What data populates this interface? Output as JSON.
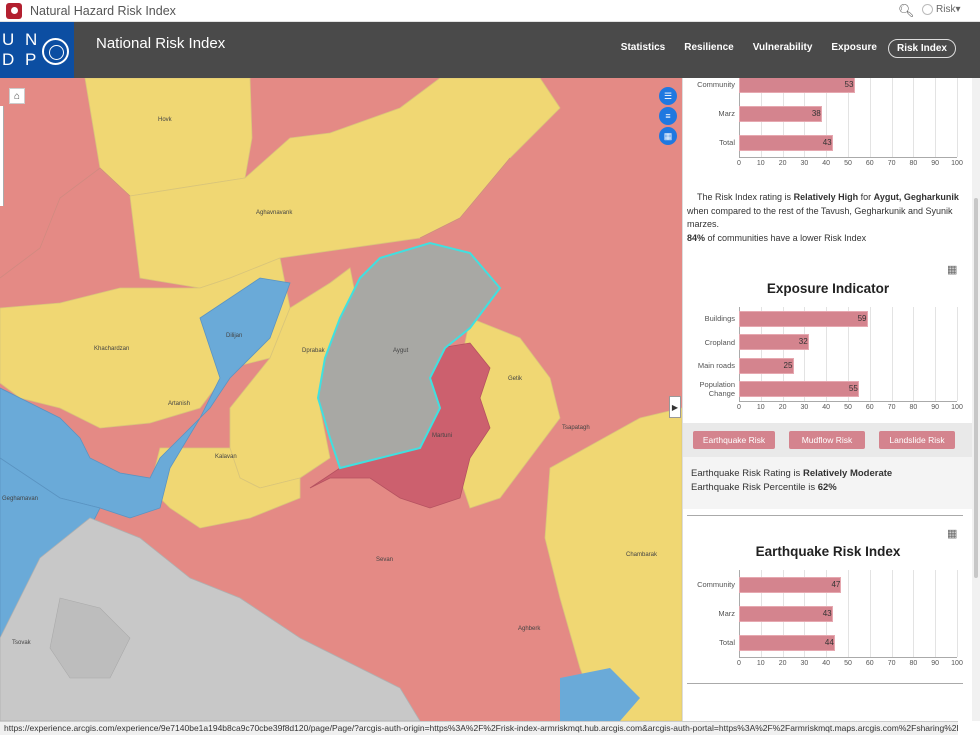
{
  "browser": {
    "tab_title": "Natural Hazard Risk Index",
    "user_label": "Risk",
    "status_url": "https://experience.arcgis.com/experience/9e7140be1a194b8ca9c70cbe39f8d120/page/Page/?arcgis-auth-origin=https%3A%2F%2Frisk-index-armriskmqt.hub.arcgis.com&arcgis-auth-portal=https%3A%2F%2Farmriskmqt.maps.arcgis.com%2Fsharing%2Fre..."
  },
  "header": {
    "logo_letters": [
      "U N",
      "D P"
    ],
    "title": "National Risk Index",
    "nav": [
      "Statistics",
      "Resilience",
      "Vulnerability",
      "Exposure",
      "Risk Index"
    ],
    "active_nav": "Risk Index"
  },
  "map": {
    "labels": [
      "Hovk",
      "Aghavnavank",
      "Khachardzan",
      "Dilijan",
      "Dprabak",
      "Aygut",
      "Getik",
      "Artanish",
      "Kalavan",
      "Martuni",
      "Tsapatagh",
      "Chambarak",
      "Geghamavan",
      "Sevan",
      "Aghberk",
      "Tsovak"
    ],
    "colors": {
      "very_low": "#6aaad8",
      "relatively_low": "#f0d773",
      "relatively_moderate": "#e48a85",
      "selected": "#cc606e",
      "no_data": "#c8c8c8",
      "highlight": "#a8a8a4",
      "outline": "#40e0e0"
    }
  },
  "risk_index_chart": {
    "chart_data": {
      "type": "bar",
      "categories": [
        "Community",
        "Marz",
        "Total"
      ],
      "values": [
        53,
        38,
        43
      ],
      "xlim": [
        0,
        100
      ],
      "ticks": [
        "0",
        "10",
        "20",
        "30",
        "40",
        "50",
        "60",
        "70",
        "80",
        "90",
        "100"
      ]
    }
  },
  "description": {
    "p1": "The Risk Index rating is",
    "rating": "Relatively High",
    "p2": "for",
    "place": "Aygut, Gegharkunik",
    "p3": "when compared to the rest of the Tavush, Gegharkunik  and Syunik marzes.",
    "percent": "84%",
    "p4": "of communities have a lower Risk Index"
  },
  "exposure_chart": {
    "title": "Exposure Indicator",
    "chart_data": {
      "type": "bar",
      "categories": [
        "Buildings",
        "Cropland",
        "Main roads",
        "Population Change"
      ],
      "values": [
        59,
        32,
        25,
        55
      ],
      "xlim": [
        0,
        100
      ],
      "ticks": [
        "0",
        "10",
        "20",
        "30",
        "40",
        "50",
        "60",
        "70",
        "80",
        "90",
        "100"
      ]
    }
  },
  "risk_tabs": [
    "Earthquake Risk",
    "Mudflow Risk",
    "Landslide Risk"
  ],
  "earthquake": {
    "line1_prefix": "Earthquake Risk Rating is",
    "line1_value": "Relatively Moderate",
    "line2_prefix": "Earthquake Risk Percentile is",
    "line2_value": "62%"
  },
  "earthquake_chart": {
    "title": "Earthquake Risk Index",
    "chart_data": {
      "type": "bar",
      "categories": [
        "Community",
        "Marz",
        "Total"
      ],
      "values": [
        47,
        43,
        44
      ],
      "xlim": [
        0,
        100
      ],
      "ticks": [
        "0",
        "10",
        "20",
        "30",
        "40",
        "50",
        "60",
        "70",
        "80",
        "90",
        "100"
      ]
    }
  }
}
